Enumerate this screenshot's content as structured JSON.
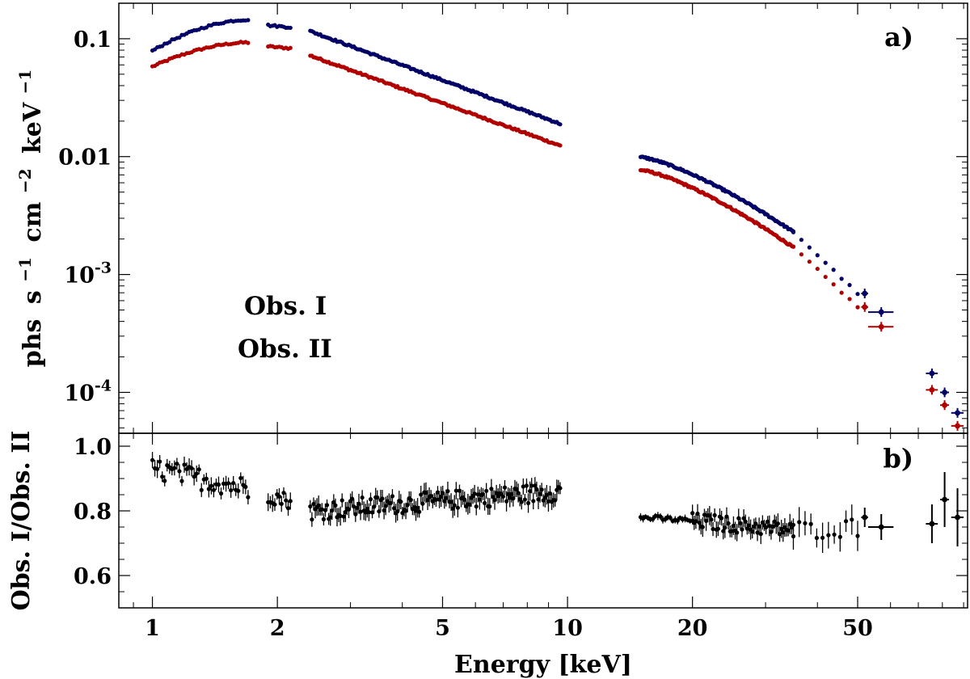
{
  "chart_data": {
    "type": "scatter",
    "panels": [
      {
        "label": "a)",
        "ylabel_parts": [
          "phs",
          "s",
          "−1",
          "cm",
          "−2",
          "keV",
          "−1"
        ],
        "yscale": "log",
        "ylim": [
          4.5e-05,
          0.2
        ],
        "yticks": [
          {
            "v": 0.1,
            "t": "0.1"
          },
          {
            "v": 0.01,
            "t": "0.01"
          },
          {
            "v": 0.001,
            "base": "10",
            "exp": "-3"
          },
          {
            "v": 0.0001,
            "base": "10",
            "exp": "-4"
          }
        ],
        "series": [
          {
            "name": "Obs. I",
            "color": "#b00000",
            "segments": [
              {
                "x0": 1.0,
                "x1": 1.7,
                "y0": 0.058,
                "y1": 0.093,
                "n": 40,
                "shape": "rise"
              },
              {
                "x0": 1.9,
                "x1": 2.15,
                "y0": 0.086,
                "y1": 0.083,
                "n": 11,
                "shape": "line"
              },
              {
                "x0": 2.4,
                "x1": 9.6,
                "y0": 0.072,
                "y1": 0.0124,
                "n": 150,
                "shape": "line"
              },
              {
                "x0": 15.0,
                "x1": 35.0,
                "y0": 0.0077,
                "y1": 0.0017,
                "n": 120,
                "shape": "curve"
              },
              {
                "x0": 35.0,
                "x1": 50.0,
                "y0": 0.0017,
                "y1": 0.00053,
                "n": 9,
                "shape": "line"
              }
            ],
            "points": [
              {
                "x": 52.0,
                "y": 0.00053,
                "xerr": [
                  51.0,
                  53.0
                ]
              },
              {
                "x": 57.0,
                "y": 0.00036,
                "xerr": [
                  53.0,
                  61.0
                ]
              },
              {
                "x": 75.5,
                "y": 0.000105,
                "xerr": [
                  73.0,
                  78.0
                ]
              },
              {
                "x": 81.0,
                "y": 7.8e-05,
                "xerr": [
                  79.0,
                  83.0
                ]
              },
              {
                "x": 87.0,
                "y": 5.2e-05,
                "xerr": [
                  84.0,
                  90.0
                ]
              }
            ]
          },
          {
            "name": "Obs. II",
            "color": "#000066",
            "segments": [
              {
                "x0": 1.0,
                "x1": 1.7,
                "y0": 0.079,
                "y1": 0.145,
                "n": 40,
                "shape": "rise"
              },
              {
                "x0": 1.9,
                "x1": 2.15,
                "y0": 0.13,
                "y1": 0.125,
                "n": 11,
                "shape": "line"
              },
              {
                "x0": 2.4,
                "x1": 9.6,
                "y0": 0.116,
                "y1": 0.019,
                "n": 150,
                "shape": "line"
              },
              {
                "x0": 15.0,
                "x1": 35.0,
                "y0": 0.0099,
                "y1": 0.0023,
                "n": 120,
                "shape": "curve"
              },
              {
                "x0": 35.0,
                "x1": 50.0,
                "y0": 0.0023,
                "y1": 0.00069,
                "n": 9,
                "shape": "line"
              }
            ],
            "points": [
              {
                "x": 52.0,
                "y": 0.00069,
                "xerr": [
                  51.0,
                  53.0
                ]
              },
              {
                "x": 57.0,
                "y": 0.00048,
                "xerr": [
                  53.0,
                  61.0
                ]
              },
              {
                "x": 75.5,
                "y": 0.000145,
                "xerr": [
                  73.0,
                  78.0
                ]
              },
              {
                "x": 81.0,
                "y": 0.0001,
                "xerr": [
                  79.0,
                  83.0
                ]
              },
              {
                "x": 87.0,
                "y": 6.7e-05,
                "xerr": [
                  84.0,
                  90.0
                ]
              }
            ]
          }
        ]
      },
      {
        "label": "b)",
        "ylabel": "Obs. I/Obs. II",
        "yscale": "linear",
        "ylim": [
          0.5,
          1.04
        ],
        "yticks": [
          {
            "v": 1.0,
            "t": "1.0"
          },
          {
            "v": 0.8,
            "t": "0.8"
          },
          {
            "v": 0.6,
            "t": "0.6"
          }
        ],
        "series": [
          {
            "name": "ratio",
            "color": "#000000",
            "segments": [
              {
                "x0": 1.0,
                "x1": 1.7,
                "y0": 0.93,
                "y1": 0.87,
                "n": 40,
                "scatter": 0.035,
                "err": 0.022
              },
              {
                "x0": 1.9,
                "x1": 2.15,
                "y0": 0.85,
                "y1": 0.83,
                "n": 11,
                "scatter": 0.025,
                "err": 0.022
              },
              {
                "x0": 2.4,
                "x1": 9.6,
                "y0": 0.8,
                "y1": 0.86,
                "n": 150,
                "scatter": 0.03,
                "err": 0.025
              },
              {
                "x0": 15.0,
                "x1": 20.0,
                "y0": 0.78,
                "y1": 0.77,
                "n": 22,
                "scatter": 0.008,
                "err": 0.01
              },
              {
                "x0": 20.0,
                "x1": 35.0,
                "y0": 0.77,
                "y1": 0.74,
                "n": 60,
                "scatter": 0.025,
                "err": 0.025
              },
              {
                "x0": 35.0,
                "x1": 50.0,
                "y0": 0.74,
                "y1": 0.75,
                "n": 12,
                "scatter": 0.03,
                "err": 0.04
              }
            ],
            "points": [
              {
                "x": 52.0,
                "y": 0.78,
                "xerr": [
                  51.0,
                  53.0
                ],
                "yerr": 0.03
              },
              {
                "x": 57.0,
                "y": 0.75,
                "xerr": [
                  53.0,
                  61.0
                ],
                "yerr": 0.04
              },
              {
                "x": 75.5,
                "y": 0.76,
                "xerr": [
                  73.0,
                  78.0
                ],
                "yerr": 0.06
              },
              {
                "x": 81.0,
                "y": 0.835,
                "xerr": [
                  79.0,
                  83.0
                ],
                "yerr": 0.085
              },
              {
                "x": 87.0,
                "y": 0.78,
                "xerr": [
                  84.0,
                  90.0
                ],
                "yerr": 0.09
              }
            ]
          }
        ]
      }
    ],
    "xscale": "log",
    "xlim": [
      0.83,
      92
    ],
    "xlabel": "Energy [keV]",
    "xticks": [
      {
        "v": 1,
        "t": "1"
      },
      {
        "v": 2,
        "t": "2"
      },
      {
        "v": 5,
        "t": "5"
      },
      {
        "v": 10,
        "t": "10"
      },
      {
        "v": 20,
        "t": "20"
      },
      {
        "v": 50,
        "t": "50"
      }
    ],
    "xminor": [
      0.9,
      3,
      4,
      6,
      7,
      8,
      9,
      30,
      40,
      60,
      70,
      80,
      90
    ],
    "legend": [
      {
        "text": "Obs. I",
        "color": "#b00000"
      },
      {
        "text": "Obs. II",
        "color": "#000066"
      }
    ]
  }
}
